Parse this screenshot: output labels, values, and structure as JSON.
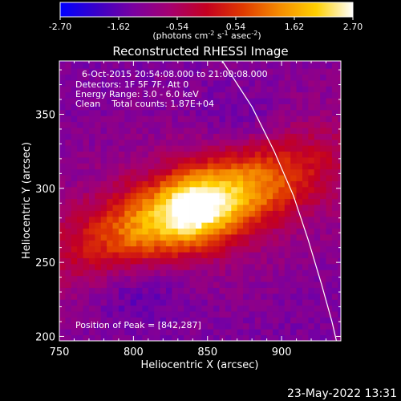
{
  "colorbar": {
    "ticks": [
      "-2.70",
      "-1.62",
      "-0.54",
      "0.54",
      "1.62",
      "2.70"
    ],
    "range": [
      -2.7,
      2.7
    ],
    "colormap": [
      "#0000ff",
      "#3a00c8",
      "#7a00a0",
      "#a50070",
      "#c40020",
      "#e03a00",
      "#f58c00",
      "#ffd000",
      "#ffffff"
    ],
    "units_prefix": "(photons cm",
    "units_exp1": "-2",
    "units_mid": " s",
    "units_exp2": "-1",
    "units_suffix": " asec",
    "units_exp3": "-2",
    "units_close": ")"
  },
  "chart_data": {
    "type": "heatmap",
    "title": "Reconstructed RHESSI Image",
    "xlabel": "Heliocentric X (arcsec)",
    "ylabel": "Heliocentric Y (arcsec)",
    "xlim": [
      750,
      940
    ],
    "ylim": [
      197,
      386
    ],
    "xticks": [
      750,
      800,
      850,
      900
    ],
    "yticks": [
      200,
      250,
      300,
      350
    ],
    "peak": [
      842,
      287
    ],
    "limb_curve": [
      [
        860,
        386
      ],
      [
        880,
        355
      ],
      [
        895,
        325
      ],
      [
        908,
        295
      ],
      [
        918,
        265
      ],
      [
        927,
        235
      ],
      [
        934,
        210
      ],
      [
        937,
        197
      ]
    ],
    "annotations": [
      "6-Oct-2015 20:54:08.000 to 21:00:08.000",
      "Detectors: 1F 5F 7F, Att 0",
      "Energy Range: 3.0 - 6.0 keV",
      "Clean    Total counts: 1.87E+04",
      "Position of Peak = [842,287]"
    ]
  },
  "footer": {
    "timestamp": "23-May-2022 13:31"
  }
}
